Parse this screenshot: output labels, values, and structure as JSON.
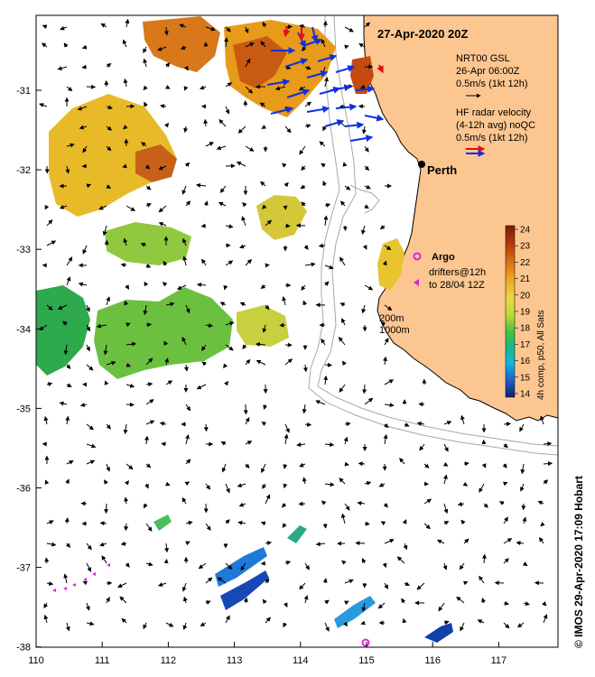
{
  "map": {
    "title": "27-Apr-2020 20Z",
    "lon_ticks": [
      "110",
      "111",
      "112",
      "113",
      "114",
      "115",
      "116",
      "117"
    ],
    "lat_ticks": [
      "-31",
      "-32",
      "-33",
      "-34",
      "-35",
      "-36",
      "-37",
      "-38"
    ],
    "city": "Perth",
    "legend": {
      "gsl_line1": "NRT00 GSL",
      "gsl_line2": "26-Apr 06:00Z",
      "gsl_line3": "0.5m/s (1kt 12h)",
      "hf_line1": "HF radar velocity",
      "hf_line2": "(4-12h avg) noQC",
      "hf_line3": "0.5m/s (1kt 12h)",
      "argo": "Argo",
      "drift_line1": "drifters@12h",
      "drift_line2": "to 28/04 12Z",
      "contour1": "200m",
      "contour2": "1000m"
    },
    "colorbar": {
      "ticks": [
        "24",
        "23",
        "22",
        "21",
        "20",
        "19",
        "18",
        "17",
        "16",
        "15",
        "14"
      ],
      "title": "4h comp, p50, All Sats"
    },
    "credit": "© IMOS 29-Apr-2020 17:09 Hobart",
    "colors": {
      "land": "#FCC690",
      "gsl_arrow": "#000000",
      "hf_arrow": "#1030E0",
      "hf_arrow_alt": "#E01010",
      "argo": "#E020E0",
      "drifter": "#E020E0",
      "contour": "#A8A8A8"
    }
  }
}
